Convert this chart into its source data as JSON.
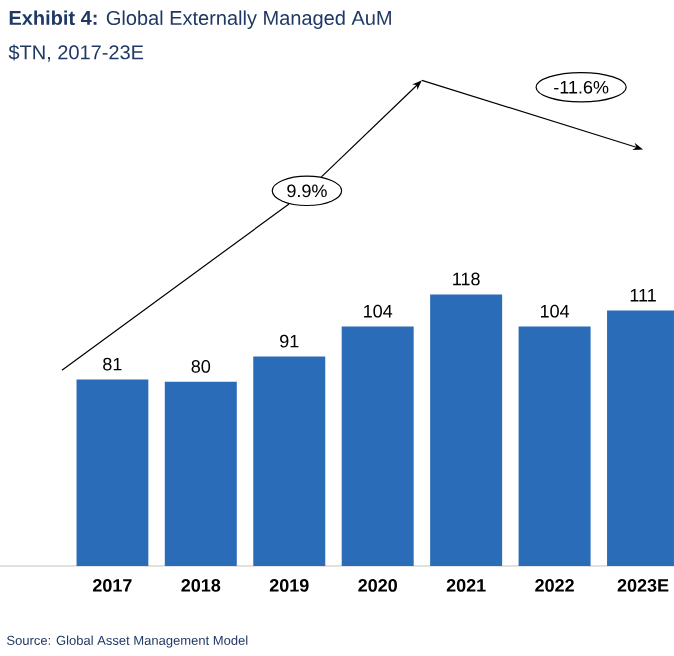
{
  "chart_data": {
    "type": "bar",
    "title": "**Exhibit 4:** Global Externally Managed AuM",
    "subtitle": "$TN, 2017-23E",
    "categories": [
      "2017",
      "2018",
      "2019",
      "2020",
      "2021",
      "2022",
      "2023E"
    ],
    "values": [
      81,
      80,
      91,
      104,
      118,
      104,
      111
    ],
    "color": "#2b6cb8",
    "data_labels": true,
    "annotations": [
      "9.9%",
      "-11.6%",
      "Source: Global Asset Management Model"
    ]
  }
}
